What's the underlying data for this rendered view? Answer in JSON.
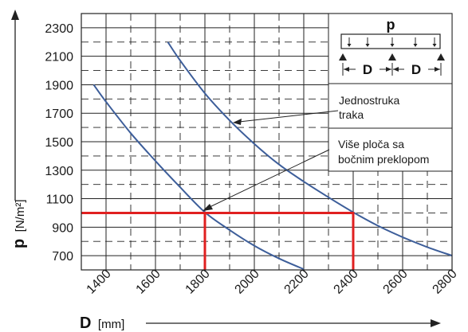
{
  "chart_data": {
    "type": "line",
    "xlabel_symbol": "D",
    "xlabel_unit": "[mm]",
    "ylabel_symbol": "p",
    "ylabel_unit": "[N/m²]",
    "xlim": [
      1300,
      2800
    ],
    "ylim": [
      600,
      2400
    ],
    "x_ticks": [
      1400,
      1600,
      1800,
      2000,
      2200,
      2400,
      2600,
      2800
    ],
    "y_ticks": [
      700,
      900,
      1100,
      1300,
      1500,
      1700,
      1900,
      2100,
      2300
    ],
    "series": [
      {
        "name": "Jednostruka traka",
        "color": "#3d5e9a",
        "x": [
          1650,
          1700,
          1800,
          1900,
          2000,
          2100,
          2200,
          2300,
          2400,
          2500,
          2600,
          2700,
          2800
        ],
        "y": [
          2200,
          2070,
          1840,
          1650,
          1485,
          1340,
          1220,
          1110,
          1005,
          910,
          830,
          760,
          700
        ]
      },
      {
        "name": "Više ploča sa bočnim preklopom",
        "color": "#3d5e9a",
        "x": [
          1350,
          1400,
          1500,
          1600,
          1700,
          1800,
          1900,
          2000,
          2100,
          2200
        ],
        "y": [
          1900,
          1780,
          1560,
          1365,
          1180,
          1005,
          880,
          770,
          680,
          605
        ]
      }
    ],
    "highlight": {
      "color": "#e02020",
      "p_level": 1000,
      "d_values": [
        1800,
        2400
      ]
    },
    "inset": {
      "load_label": "p",
      "span_label": "D"
    },
    "annotations": {
      "single_strip": [
        "Jednostruka",
        "traka"
      ],
      "multi_panel": [
        "Više ploča sa",
        "bočnim preklopom"
      ]
    }
  }
}
